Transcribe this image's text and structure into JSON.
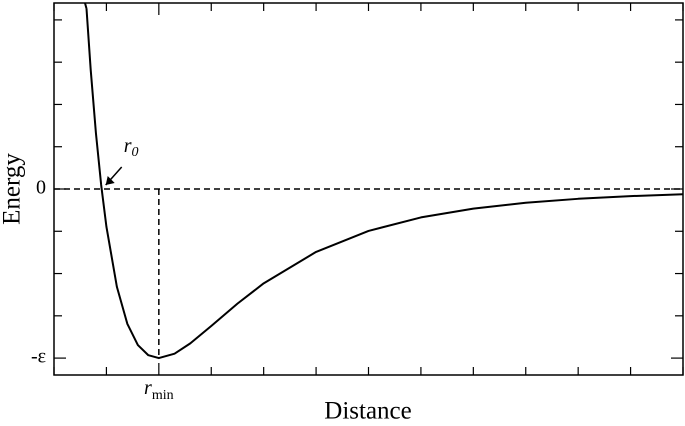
{
  "chart_data": {
    "type": "line",
    "x_label": "Distance",
    "y_label": "Energy",
    "x": [
      0.862,
      0.87,
      0.88,
      0.89,
      0.9,
      0.92,
      0.94,
      0.96,
      0.98,
      1.0,
      1.03,
      1.06,
      1.1,
      1.15,
      1.2,
      1.3,
      1.4,
      1.5,
      1.6,
      1.7,
      1.8,
      1.9,
      2.0
    ],
    "values": [
      1.067,
      0.706,
      0.33,
      0.024,
      -0.223,
      -0.579,
      -0.798,
      -0.923,
      -0.983,
      -1.0,
      -0.974,
      -0.913,
      -0.81,
      -0.678,
      -0.558,
      -0.372,
      -0.248,
      -0.168,
      -0.116,
      -0.081,
      -0.058,
      -0.042,
      -0.031
    ],
    "color": "#000000",
    "xlim": [
      0.8,
      2.0
    ],
    "ylim": [
      -1.1,
      1.1
    ],
    "xticks": [
      {
        "value": 1.0,
        "label": "r",
        "label_subscript": "min"
      }
    ],
    "xminorticks": [
      0.8,
      0.9,
      1.1,
      1.2,
      1.3,
      1.4,
      1.5,
      1.6,
      1.7,
      1.8,
      1.9,
      2.0
    ],
    "yticks": [
      {
        "value": -1,
        "label": "-ε"
      },
      0
    ],
    "yminorticks": [
      -0.75,
      -0.5,
      -0.25,
      0.25,
      0.5,
      0.75,
      1.0
    ],
    "annotations": [
      {
        "text": "r",
        "subscript": "0",
        "x": 0.891,
        "y": 0
      }
    ]
  }
}
